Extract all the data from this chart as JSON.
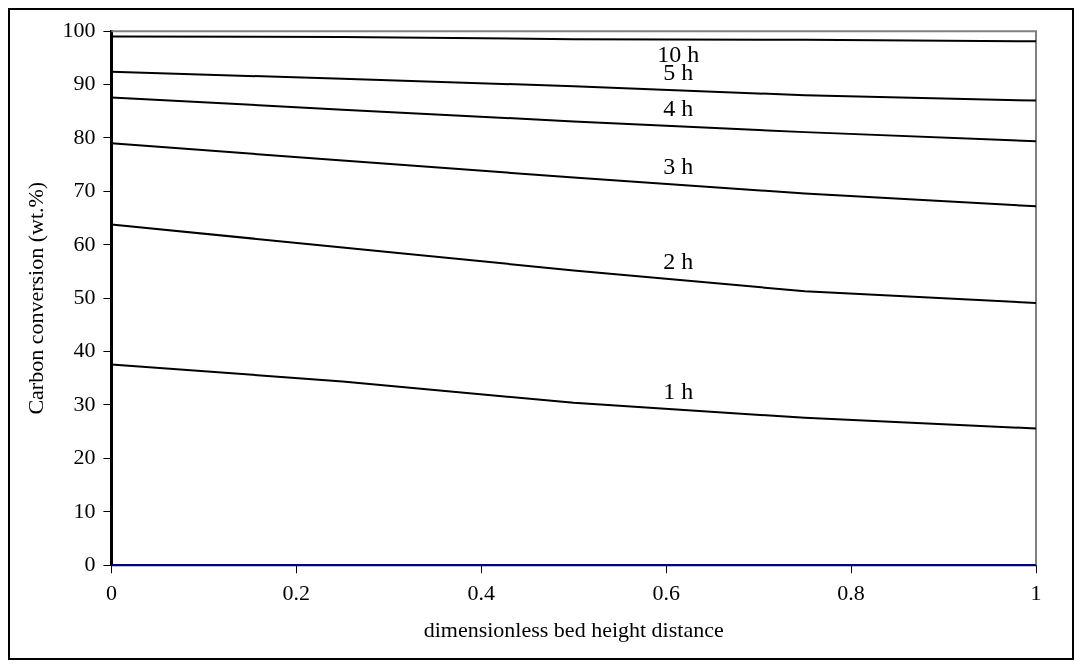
{
  "chart_data": {
    "type": "line",
    "xlabel": "dimensionless bed height distance",
    "ylabel": "Carbon conversion (wt.%)",
    "x": [
      0,
      0.25,
      0.5,
      0.75,
      1
    ],
    "series": [
      {
        "name": "10 h",
        "color": "#000000",
        "values": [
          99.0,
          98.9,
          98.5,
          98.4,
          98.1
        ]
      },
      {
        "name": "5 h",
        "color": "#000000",
        "values": [
          92.4,
          91.1,
          89.7,
          88.0,
          87.0
        ]
      },
      {
        "name": "4 h",
        "color": "#000000",
        "values": [
          87.6,
          85.3,
          83.1,
          81.1,
          79.4
        ]
      },
      {
        "name": "3 h",
        "color": "#000000",
        "values": [
          79.0,
          75.8,
          72.6,
          69.6,
          67.2
        ]
      },
      {
        "name": "2 h",
        "color": "#000000",
        "values": [
          63.8,
          59.5,
          55.2,
          51.3,
          49.1
        ]
      },
      {
        "name": "1 h",
        "color": "#000000",
        "values": [
          37.6,
          34.4,
          30.4,
          27.6,
          25.6
        ]
      }
    ],
    "xlim": [
      0,
      1
    ],
    "xticks": [
      0,
      0.2,
      0.4,
      0.6,
      0.8,
      1
    ],
    "ylim": [
      0,
      100
    ],
    "yticks": [
      0,
      10,
      20,
      30,
      40,
      50,
      60,
      70,
      80,
      90,
      100
    ],
    "grid": false,
    "legend": false,
    "marker": "none",
    "line_style": "solid"
  }
}
